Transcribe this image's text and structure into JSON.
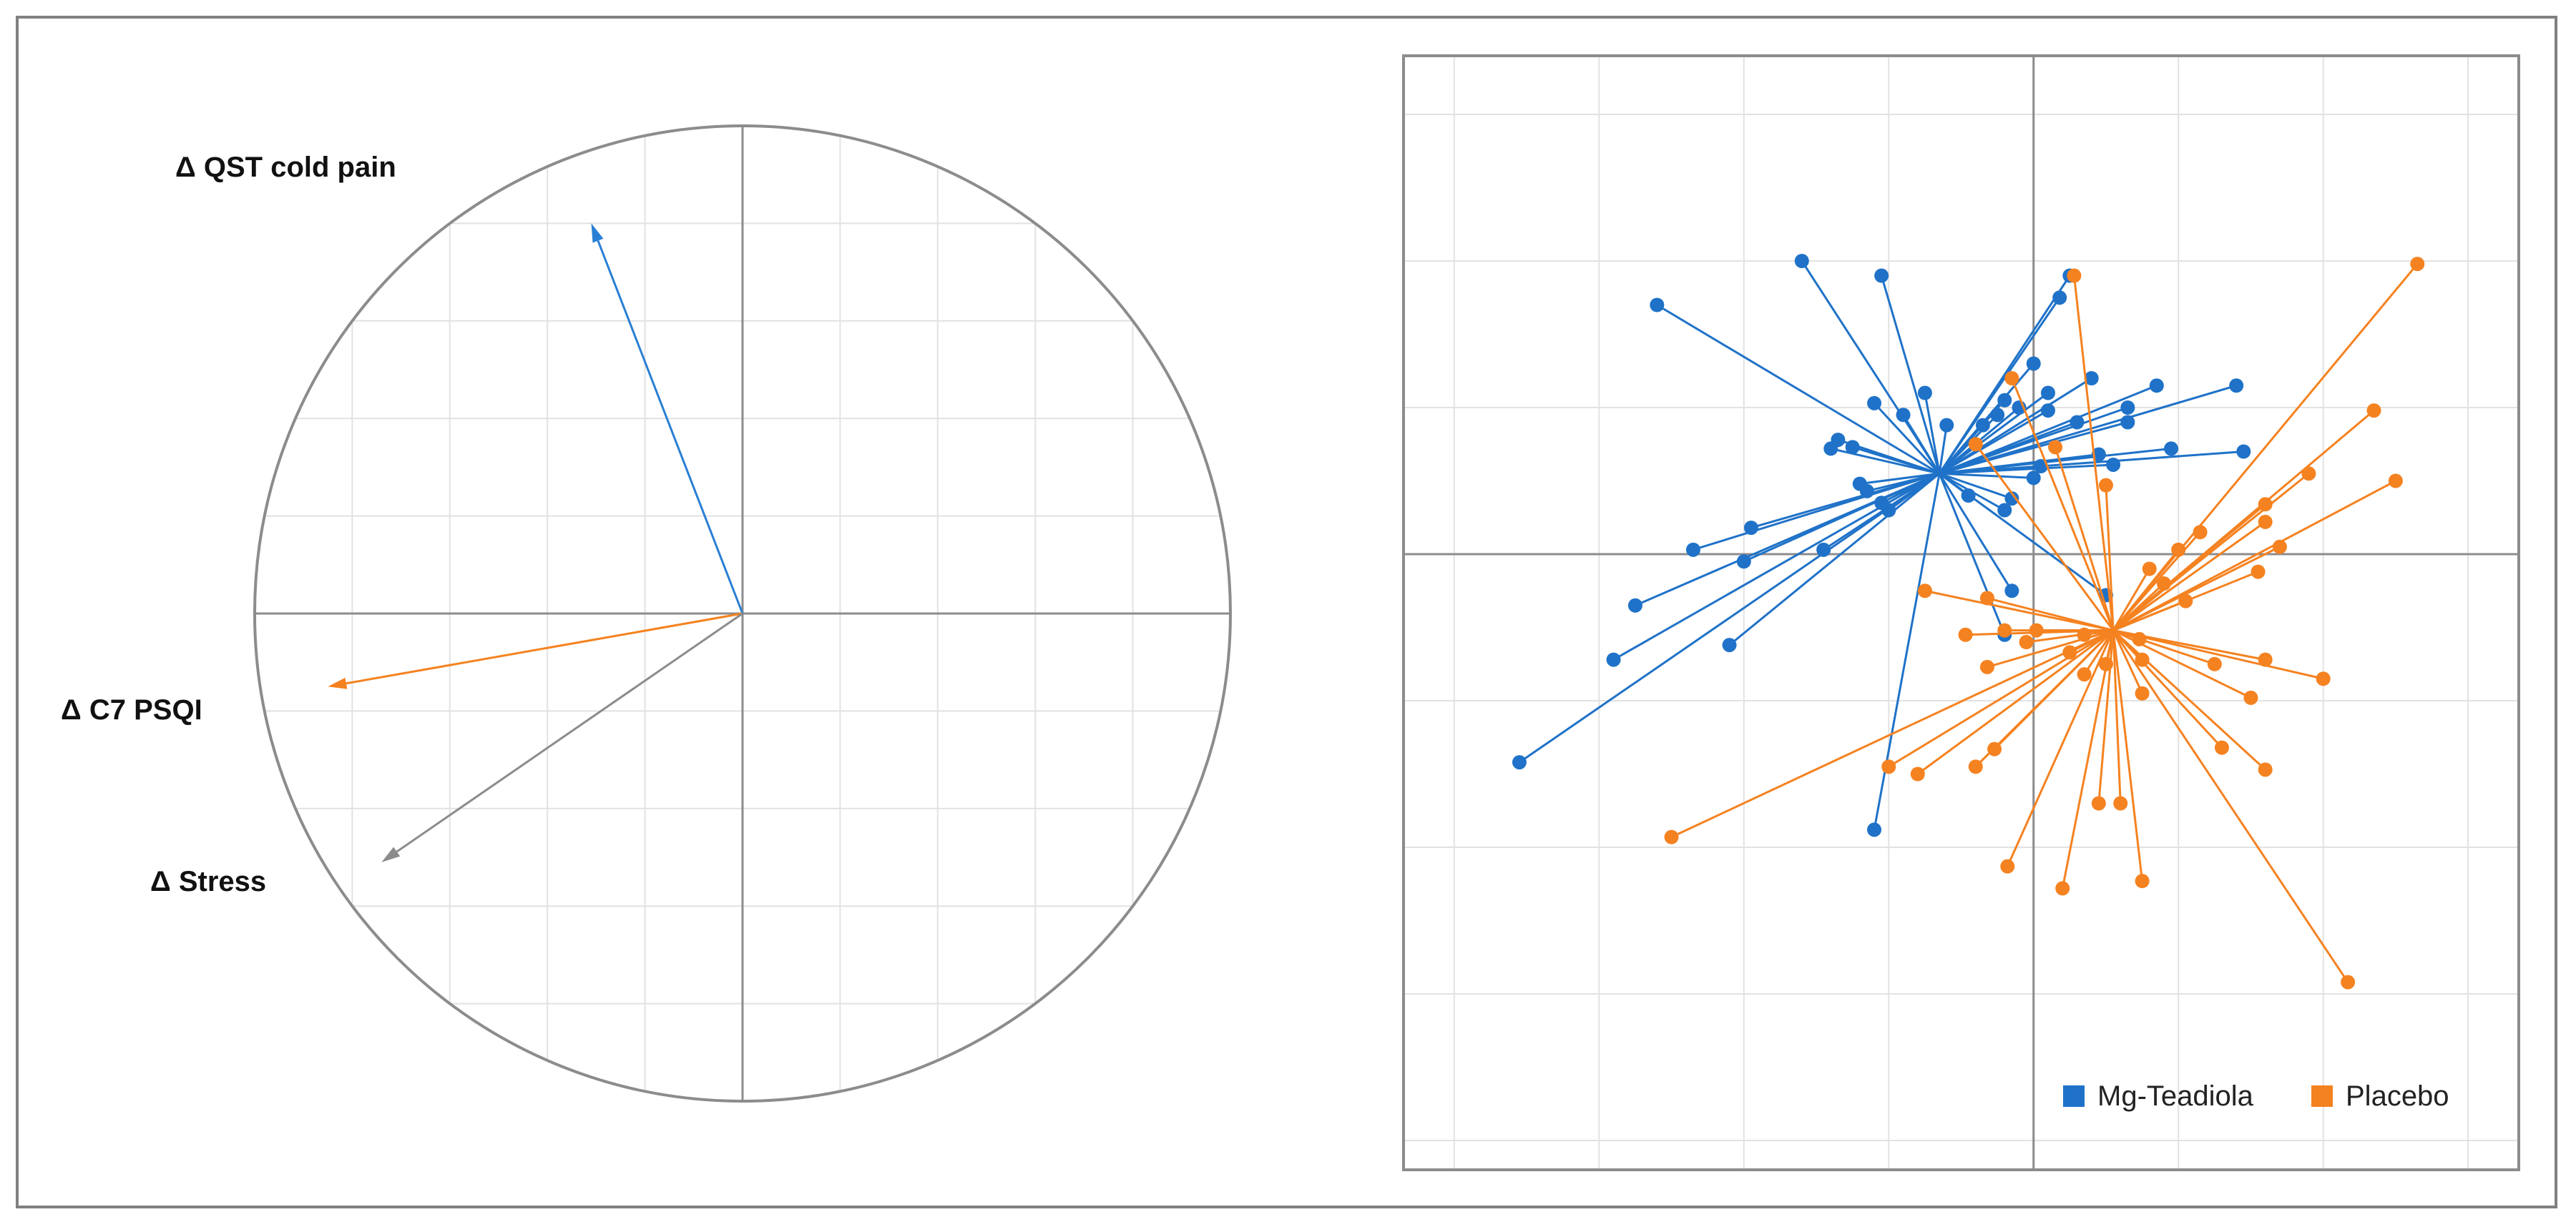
{
  "chart_data": [
    {
      "type": "correlation-circle",
      "title": "",
      "xlim": [
        -1,
        1
      ],
      "ylim": [
        -1,
        1
      ],
      "grid": true,
      "vectors": [
        {
          "label": "Δ QST cold pain",
          "x": -0.31,
          "y": 0.8,
          "color": "#2a7fd4"
        },
        {
          "label": "Δ C7 PSQI",
          "x": -0.85,
          "y": -0.15,
          "color": "#f58220"
        },
        {
          "label": "Δ Stress",
          "x": -0.74,
          "y": -0.51,
          "color": "#8c8c8c"
        }
      ]
    },
    {
      "type": "scatter",
      "title": "",
      "xlim": [
        -4.35,
        3.35
      ],
      "ylim": [
        -4.2,
        3.4
      ],
      "grid": true,
      "legend_position": "bottom-right",
      "series": [
        {
          "name": "Mg-Teadiola",
          "color": "#1f72c8",
          "centroid": [
            -0.65,
            0.55
          ],
          "points": [
            [
              -1.6,
              2.0
            ],
            [
              -1.05,
              1.9
            ],
            [
              -2.6,
              1.7
            ],
            [
              0.25,
              1.9
            ],
            [
              0.18,
              1.75
            ],
            [
              0.0,
              1.3
            ],
            [
              0.4,
              1.2
            ],
            [
              0.1,
              1.1
            ],
            [
              -0.2,
              1.05
            ],
            [
              -0.75,
              1.1
            ],
            [
              -1.1,
              1.03
            ],
            [
              -0.9,
              0.95
            ],
            [
              -0.6,
              0.88
            ],
            [
              -0.35,
              0.88
            ],
            [
              -0.25,
              0.95
            ],
            [
              -0.1,
              1.0
            ],
            [
              0.1,
              0.98
            ],
            [
              0.3,
              0.9
            ],
            [
              0.65,
              1.0
            ],
            [
              0.85,
              1.15
            ],
            [
              1.4,
              1.15
            ],
            [
              0.65,
              0.9
            ],
            [
              0.95,
              0.72
            ],
            [
              1.45,
              0.7
            ],
            [
              0.45,
              0.68
            ],
            [
              0.55,
              0.61
            ],
            [
              -1.35,
              0.78
            ],
            [
              -1.25,
              0.73
            ],
            [
              -1.4,
              0.72
            ],
            [
              0.0,
              0.52
            ],
            [
              0.05,
              0.6
            ],
            [
              -1.15,
              0.43
            ],
            [
              -1.2,
              0.48
            ],
            [
              -1.05,
              0.35
            ],
            [
              -1.0,
              0.3
            ],
            [
              -1.95,
              0.18
            ],
            [
              -2.35,
              0.03
            ],
            [
              -1.45,
              0.03
            ],
            [
              -2.0,
              -0.05
            ],
            [
              -2.75,
              -0.35
            ],
            [
              -0.45,
              0.4
            ],
            [
              -0.2,
              0.3
            ],
            [
              -0.15,
              0.38
            ],
            [
              -0.15,
              -0.25
            ],
            [
              0.5,
              -0.28
            ],
            [
              -0.2,
              -0.55
            ],
            [
              -2.9,
              -0.72
            ],
            [
              -2.1,
              -0.62
            ],
            [
              -3.55,
              -1.42
            ],
            [
              -1.1,
              -1.88
            ]
          ]
        },
        {
          "name": "Placebo",
          "color": "#f58220",
          "centroid": [
            0.55,
            -0.52
          ],
          "points": [
            [
              2.65,
              1.98
            ],
            [
              0.28,
              1.9
            ],
            [
              2.35,
              0.98
            ],
            [
              2.5,
              0.5
            ],
            [
              1.9,
              0.55
            ],
            [
              1.6,
              0.34
            ],
            [
              1.6,
              0.22
            ],
            [
              1.7,
              0.05
            ],
            [
              1.15,
              0.15
            ],
            [
              1.0,
              0.03
            ],
            [
              0.8,
              -0.1
            ],
            [
              0.9,
              -0.2
            ],
            [
              1.55,
              -0.12
            ],
            [
              1.05,
              -0.32
            ],
            [
              -0.15,
              1.2
            ],
            [
              -0.4,
              0.75
            ],
            [
              0.15,
              0.73
            ],
            [
              0.5,
              0.47
            ],
            [
              -0.75,
              -0.25
            ],
            [
              -0.32,
              -0.3
            ],
            [
              -0.47,
              -0.55
            ],
            [
              -0.2,
              -0.52
            ],
            [
              0.02,
              -0.52
            ],
            [
              0.35,
              -0.55
            ],
            [
              0.73,
              -0.58
            ],
            [
              -0.32,
              -0.77
            ],
            [
              -0.05,
              -0.6
            ],
            [
              0.25,
              -0.67
            ],
            [
              0.35,
              -0.82
            ],
            [
              0.5,
              -0.75
            ],
            [
              0.75,
              -0.72
            ],
            [
              1.25,
              -0.75
            ],
            [
              1.6,
              -0.72
            ],
            [
              2.0,
              -0.85
            ],
            [
              1.5,
              -0.98
            ],
            [
              0.75,
              -0.95
            ],
            [
              -1.0,
              -1.45
            ],
            [
              -0.8,
              -1.5
            ],
            [
              -0.4,
              -1.45
            ],
            [
              -0.27,
              -1.33
            ],
            [
              0.45,
              -1.7
            ],
            [
              0.6,
              -1.7
            ],
            [
              1.3,
              -1.32
            ],
            [
              1.6,
              -1.47
            ],
            [
              -2.5,
              -1.93
            ],
            [
              -0.18,
              -2.13
            ],
            [
              0.2,
              -2.28
            ],
            [
              0.75,
              -2.23
            ],
            [
              2.17,
              -2.92
            ]
          ]
        }
      ]
    }
  ]
}
